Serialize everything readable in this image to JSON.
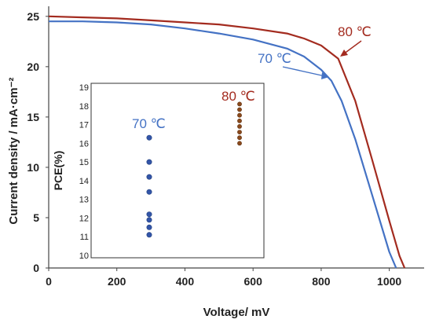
{
  "chart_data": [
    {
      "type": "line",
      "xlabel": "Voltage/ mV",
      "ylabel": "Current density / mA·cm⁻²",
      "xlim": [
        0,
        1100
      ],
      "ylim": [
        0,
        26
      ],
      "xticks": [
        "0",
        "200",
        "400",
        "600",
        "800",
        "1000"
      ],
      "yticks": [
        "0",
        "5",
        "10",
        "15",
        "20",
        "25"
      ],
      "series": [
        {
          "name": "70 ℃",
          "color": "#4472C4",
          "x": [
            0,
            100,
            200,
            300,
            400,
            500,
            600,
            700,
            750,
            800,
            830,
            860,
            900,
            950,
            1000,
            1020
          ],
          "y": [
            24.5,
            24.5,
            24.4,
            24.2,
            23.8,
            23.3,
            22.7,
            21.8,
            21.0,
            19.7,
            18.6,
            16.6,
            12.8,
            7.2,
            1.6,
            0
          ]
        },
        {
          "name": "80 ℃",
          "color": "#A32B1F",
          "x": [
            0,
            100,
            200,
            300,
            400,
            500,
            600,
            700,
            750,
            800,
            850,
            900,
            950,
            1000,
            1030,
            1045
          ],
          "y": [
            25.0,
            24.9,
            24.8,
            24.6,
            24.4,
            24.2,
            23.8,
            23.3,
            22.8,
            22.1,
            20.8,
            16.6,
            10.7,
            4.7,
            1.2,
            0
          ]
        }
      ],
      "annotations": [
        {
          "text": "80 ℃",
          "color": "#A32B1F",
          "arrow_to": [
            855,
            20.8
          ]
        },
        {
          "text": "70 ℃",
          "color": "#4472C4",
          "arrow_to": [
            825,
            18.9
          ]
        }
      ]
    },
    {
      "type": "scatter",
      "ylabel": "PCE(%)",
      "ylim": [
        10,
        19
      ],
      "yticks": [
        "10",
        "11",
        "12",
        "13",
        "14",
        "15",
        "16",
        "17",
        "18",
        "19"
      ],
      "series": [
        {
          "name": "70 ℃",
          "color": "#4472C4",
          "marker_color": "#3355A8",
          "y": [
            16.3,
            15.0,
            14.2,
            13.4,
            12.2,
            11.9,
            11.5,
            11.1
          ]
        },
        {
          "name": "80 ℃",
          "color": "#A32B1F",
          "marker_color": "#8B4A1C",
          "y": [
            18.1,
            17.8,
            17.5,
            17.2,
            16.9,
            16.6,
            16.3,
            16.0
          ]
        }
      ]
    }
  ]
}
